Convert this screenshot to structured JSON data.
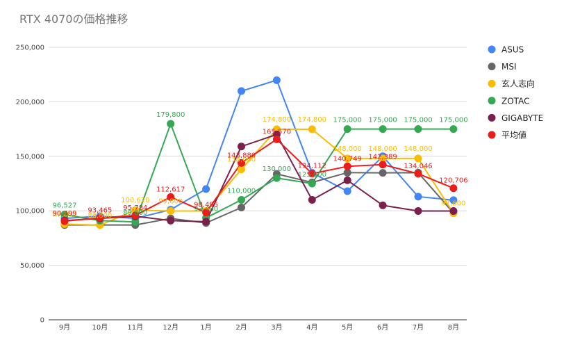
{
  "chart_data": {
    "type": "line",
    "title": "RTX 4070の価格推移",
    "xlabel": "",
    "ylabel": "",
    "categories": [
      "9月",
      "10月",
      "11月",
      "12月",
      "1月",
      "2月",
      "3月",
      "4月",
      "5月",
      "6月",
      "7月",
      "8月"
    ],
    "ylim": [
      0,
      250000
    ],
    "yticks": [
      0,
      50000,
      100000,
      150000,
      200000,
      250000
    ],
    "ytick_labels": [
      "0",
      "50,000",
      "100,000",
      "150,000",
      "200,000",
      "250,000"
    ],
    "grid": true,
    "legend_position": "right",
    "series": [
      {
        "name": "ASUS",
        "color": "#4285f4",
        "values": [
          93000,
          95000,
          93000,
          101000,
          120000,
          209800,
          219800,
          134800,
          118000,
          150000,
          113000,
          109800
        ],
        "labels": []
      },
      {
        "name": "MSI",
        "color": "#666666",
        "values": [
          87000,
          87000,
          87000,
          93000,
          88800,
          103000,
          133800,
          126000,
          135000,
          134800,
          135000,
          98000
        ],
        "labels": []
      },
      {
        "name": "玄人志向",
        "color": "#fbbc04",
        "values": [
          87800,
          86800,
          100620,
          99800,
          99800,
          138000,
          174800,
          174800,
          148000,
          148000,
          148000,
          97800
        ],
        "labels": [
          "87,800",
          "86,800",
          "100,620",
          "99,800",
          "",
          "138,000",
          "174,800",
          "174,800",
          "148,000",
          "148,000",
          "148,000",
          "97,800"
        ]
      },
      {
        "name": "ZOTAC",
        "color": "#34a853",
        "values": [
          96527,
          91000,
          89800,
          179800,
          93480,
          110000,
          130000,
          125000,
          175000,
          175000,
          175000,
          175000
        ],
        "labels": [
          "96,527",
          "",
          "89,800",
          "179,800",
          "93,480",
          "110,000",
          "130,000",
          "125,000",
          "175,000",
          "175,000",
          "175,000",
          "175,000"
        ]
      },
      {
        "name": "GIGABYTE",
        "color": "#7b1f4c",
        "values": [
          91000,
          93000,
          95000,
          91000,
          90000,
          159000,
          170000,
          110000,
          128000,
          105000,
          99800,
          99800
        ],
        "labels": []
      },
      {
        "name": "平均値",
        "color": "#ea1c1c",
        "values": [
          90499,
          93465,
          95784,
          112617,
          98495,
          143880,
          165570,
          134112,
          140749,
          142389,
          134046,
          120706
        ],
        "labels": [
          "90,499",
          "93,465",
          "95,784",
          "112,617",
          "98,495",
          "143,880",
          "165,570",
          "134,112",
          "140,749",
          "142,389",
          "134,046",
          "120,706"
        ]
      }
    ]
  }
}
